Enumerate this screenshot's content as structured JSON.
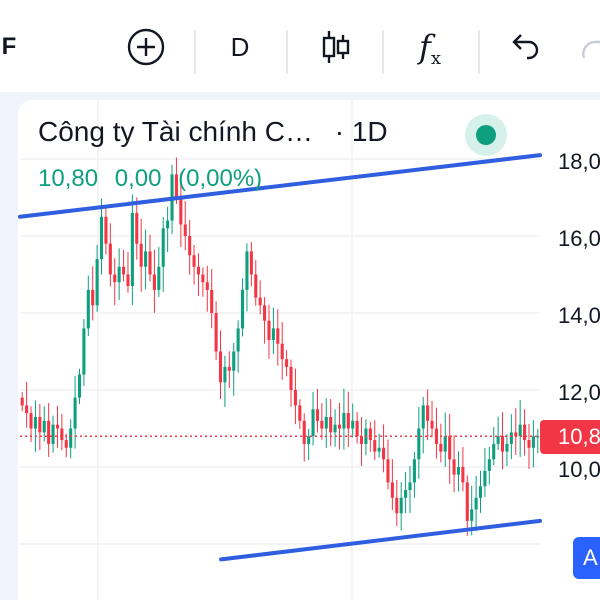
{
  "toolbar": {
    "symbol_fragment": "F",
    "add_icon": "plus-circle-icon",
    "interval": "D",
    "indicators_icon": "candles-icon",
    "functions_label": "f",
    "functions_sub": "x",
    "undo_icon": "undo-icon",
    "redo_icon": "redo-icon"
  },
  "legend": {
    "title": "Công ty Tài chính C…",
    "interval": "· 1D",
    "last": "10,80",
    "change": "0,00",
    "change_pct": "(0,00%)",
    "status_color": "#0e9f7e"
  },
  "price_scale": {
    "labels": [
      "18,0",
      "16,0",
      "14,0",
      "12,0",
      "10,0"
    ],
    "last_price": "10,8",
    "last_price_color": "#f23645",
    "auto_label": "A"
  },
  "colors": {
    "up": "#0e9f7e",
    "down": "#f23645",
    "trendline": "#2f5fe0"
  },
  "chart_data": {
    "type": "candlestick",
    "y_range": [
      8.0,
      18.3
    ],
    "last_price": 10.8,
    "trendlines": [
      {
        "name": "upper",
        "from": {
          "i": 0,
          "price": 16.5
        },
        "to": {
          "i": 200,
          "price": 18.1
        }
      },
      {
        "name": "lower",
        "from": {
          "i": 60,
          "price": 7.6
        },
        "to": {
          "i": 200,
          "price": 8.6
        }
      }
    ],
    "closes": [
      11.6,
      11.4,
      11.0,
      11.3,
      10.9,
      11.2,
      10.6,
      11.1,
      11.0,
      10.7,
      10.5,
      11.0,
      11.8,
      12.4,
      13.6,
      14.6,
      14.2,
      15.4,
      16.5,
      15.8,
      15.0,
      14.8,
      15.2,
      15.0,
      14.7,
      16.6,
      15.8,
      15.2,
      15.6,
      15.0,
      14.6,
      15.2,
      16.2,
      16.4,
      17.6,
      17.0,
      16.3,
      16.0,
      15.5,
      15.2,
      15.0,
      14.8,
      14.6,
      14.0,
      13.0,
      12.2,
      12.6,
      12.5,
      13.0,
      13.6,
      14.6,
      15.6,
      15.0,
      14.4,
      14.2,
      13.8,
      13.3,
      13.6,
      13.2,
      12.8,
      12.6,
      12.0,
      11.6,
      11.2,
      10.6,
      10.8,
      11.5,
      11.2,
      11.0,
      11.3,
      10.9,
      11.1,
      11.0,
      11.4,
      11.0,
      11.2,
      10.8,
      10.6,
      11.0,
      10.7,
      10.4,
      10.5,
      10.2,
      9.6,
      9.2,
      8.8,
      9.2,
      9.4,
      9.6,
      10.2,
      11.0,
      11.6,
      11.2,
      11.0,
      10.6,
      10.4,
      10.8,
      10.2,
      9.8,
      10.0,
      9.6,
      8.6,
      8.9,
      9.2,
      9.5,
      9.9,
      10.2,
      10.6,
      10.8,
      10.4,
      10.6,
      10.9,
      10.8,
      11.1,
      10.7,
      10.5,
      10.8,
      10.8
    ]
  }
}
